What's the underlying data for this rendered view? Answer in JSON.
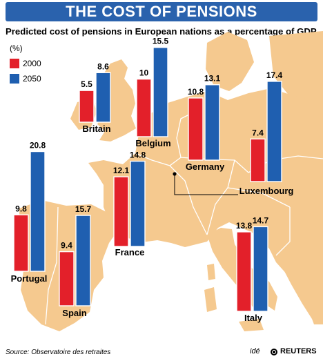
{
  "header": {
    "title": "THE COST OF PENSIONS",
    "subtitle": "Predicted cost of pensions in European nations as a percentage of GDP",
    "unit": "(%)"
  },
  "legend": [
    {
      "label": "2000",
      "color": "#e3202a"
    },
    {
      "label": "2050",
      "color": "#1f5fb0"
    }
  ],
  "footer": {
    "source": "Source: Observatoire des retraites",
    "credit_ide": "idé",
    "credit_reuters": "REUTERS"
  },
  "colors": {
    "banner": "#2a62ad",
    "map_land": "#f5c98f",
    "sea": "#ffffff",
    "y2000": "#e3202a",
    "y2050": "#1f5fb0"
  },
  "chart_data": {
    "type": "bar",
    "title": "THE COST OF PENSIONS",
    "subtitle": "Predicted cost of pensions in European nations as a percentage of GDP",
    "unit": "(%)",
    "categories": [
      "Britain",
      "Belgium",
      "Germany",
      "Luxembourg",
      "Portugal",
      "Spain",
      "France",
      "Italy"
    ],
    "series": [
      {
        "name": "2000",
        "values": [
          5.5,
          10,
          10.8,
          7.4,
          9.8,
          9.4,
          12.1,
          13.8
        ]
      },
      {
        "name": "2050",
        "values": [
          8.6,
          15.5,
          13.1,
          17.4,
          20.8,
          15.7,
          14.8,
          14.7
        ]
      }
    ],
    "legend_position": "top-left"
  }
}
